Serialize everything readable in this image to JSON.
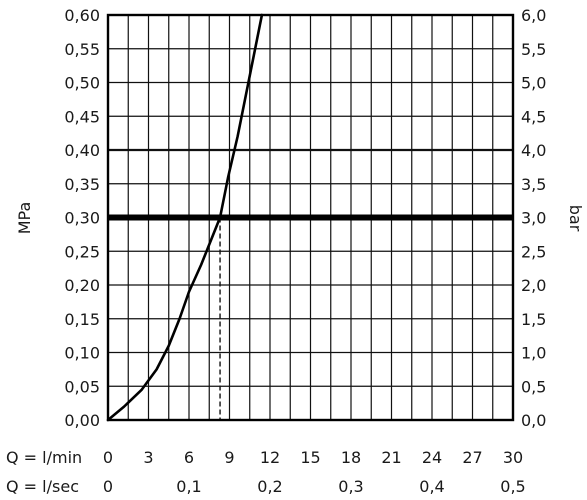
{
  "chart_data": {
    "type": "line",
    "x_unit_label": "Q = l/min",
    "x2_unit_label": "Q = l/sec",
    "xlim": [
      0,
      30
    ],
    "x_ticks": [
      "0",
      "3",
      "6",
      "9",
      "12",
      "15",
      "18",
      "21",
      "24",
      "27",
      "30"
    ],
    "x2_ticks": [
      {
        "value": 0,
        "label": "0"
      },
      {
        "value": 6,
        "label": "0,1"
      },
      {
        "value": 12,
        "label": "0,2"
      },
      {
        "value": 18,
        "label": "0,3"
      },
      {
        "value": 24,
        "label": "0,4"
      },
      {
        "value": 30,
        "label": "0,5"
      }
    ],
    "ylabel": "MPa",
    "ylim": [
      0,
      0.6
    ],
    "y_ticks": [
      "0,00",
      "0,05",
      "0,10",
      "0,15",
      "0,20",
      "0,25",
      "0,30",
      "0,35",
      "0,40",
      "0,45",
      "0,50",
      "0,55",
      "0,60"
    ],
    "y2label": "bar",
    "y2_ticks": [
      "0,0",
      "0,5",
      "1,0",
      "1,5",
      "2,0",
      "2,5",
      "3,0",
      "3,5",
      "4,0",
      "4,5",
      "5,0",
      "5,5",
      "6,0"
    ],
    "grid": true,
    "minor_vertical_grid_step": 1.5,
    "series": [
      {
        "x": [
          0,
          1.2,
          2.5,
          3.6,
          4.5,
          5.3,
          6.0,
          6.9,
          7.7,
          8.3,
          8.9,
          9.6,
          10.2,
          10.8,
          11.4
        ],
        "y": [
          0,
          0.02,
          0.045,
          0.075,
          0.11,
          0.15,
          0.19,
          0.23,
          0.27,
          0.3,
          0.36,
          0.42,
          0.48,
          0.54,
          0.6
        ]
      }
    ],
    "reference_line": {
      "y": 0.3
    },
    "drop_line": {
      "x": 8.3,
      "y": 0.3
    }
  }
}
